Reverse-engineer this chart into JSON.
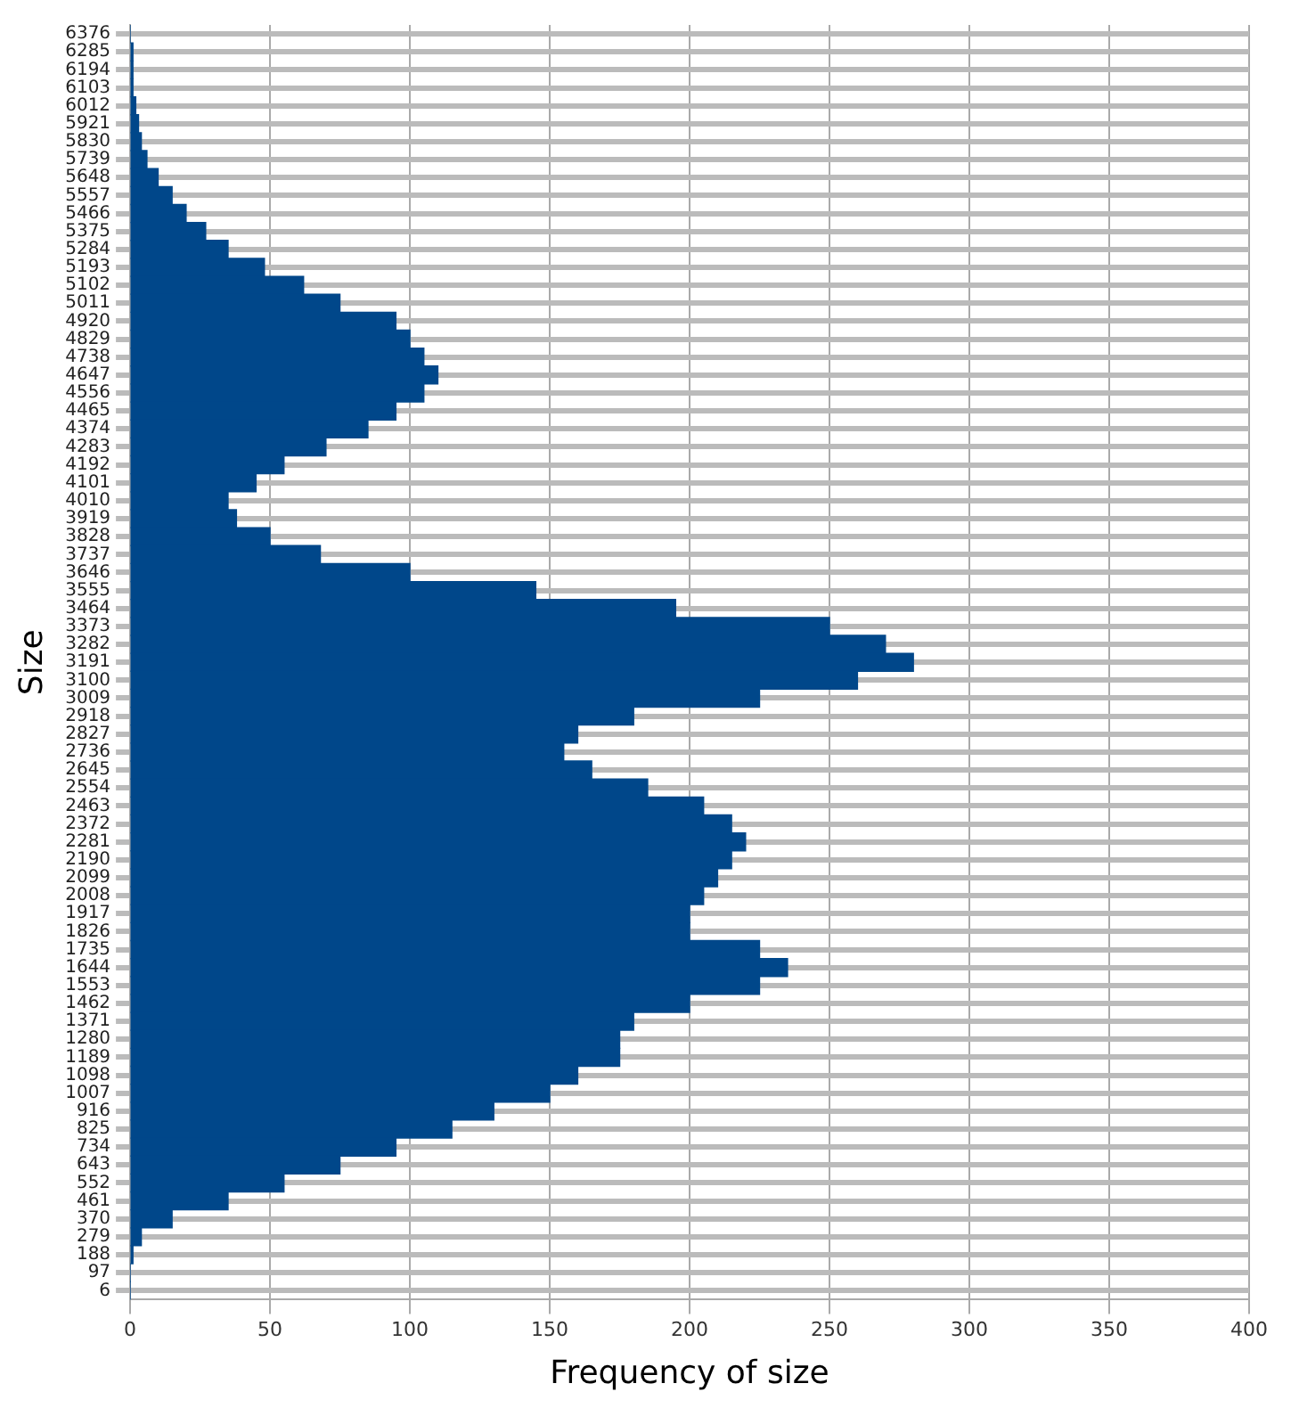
{
  "chart_data": {
    "type": "bar",
    "orientation": "horizontal",
    "xlabel": "Frequency of size",
    "ylabel": "Size",
    "categories": [
      "6376",
      "6285",
      "6194",
      "6103",
      "6012",
      "5921",
      "5830",
      "5739",
      "5648",
      "5557",
      "5466",
      "5375",
      "5284",
      "5193",
      "5102",
      "5011",
      "4920",
      "4829",
      "4738",
      "4647",
      "4556",
      "4465",
      "4374",
      "4283",
      "4192",
      "4101",
      "4010",
      "3919",
      "3828",
      "3737",
      "3646",
      "3555",
      "3464",
      "3373",
      "3282",
      "3191",
      "3100",
      "3009",
      "2918",
      "2827",
      "2736",
      "2645",
      "2554",
      "2463",
      "2372",
      "2281",
      "2190",
      "2099",
      "2008",
      "1917",
      "1826",
      "1735",
      "1644",
      "1553",
      "1462",
      "1371",
      "1280",
      "1189",
      "1098",
      "1007",
      "916",
      "825",
      "734",
      "643",
      "552",
      "461",
      "370",
      "279",
      "188",
      "97",
      "6"
    ],
    "values": [
      0,
      1,
      1,
      1,
      2,
      3,
      4,
      6,
      10,
      15,
      20,
      27,
      35,
      48,
      62,
      75,
      95,
      100,
      105,
      110,
      105,
      95,
      85,
      70,
      55,
      45,
      35,
      38,
      50,
      68,
      100,
      145,
      195,
      250,
      270,
      280,
      260,
      225,
      180,
      160,
      155,
      165,
      185,
      205,
      215,
      220,
      215,
      210,
      205,
      200,
      200,
      225,
      235,
      225,
      200,
      180,
      175,
      175,
      160,
      150,
      130,
      115,
      95,
      75,
      55,
      35,
      15,
      4,
      1,
      0,
      0
    ],
    "color": "#00478a",
    "xlim": [
      0,
      400
    ],
    "xticks": [
      0,
      50,
      100,
      150,
      200,
      250,
      300,
      350,
      400
    ],
    "grid": true,
    "legend": false
  }
}
